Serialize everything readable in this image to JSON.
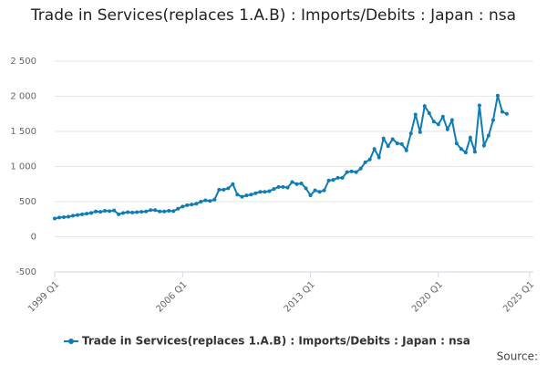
{
  "chart_data": {
    "type": "line",
    "title": "Trade in Services(replaces 1.A.B) : Imports/Debits : Japan : nsa",
    "source": "Source:",
    "categories": [
      "1999 Q1",
      null,
      null,
      null,
      null,
      null,
      null,
      null,
      null,
      null,
      null,
      null,
      null,
      null,
      null,
      null,
      null,
      null,
      null,
      null,
      null,
      null,
      null,
      null,
      null,
      null,
      null,
      null,
      "2006 Q1",
      null,
      null,
      null,
      null,
      null,
      null,
      null,
      null,
      null,
      null,
      null,
      null,
      null,
      null,
      null,
      null,
      null,
      null,
      null,
      null,
      null,
      null,
      null,
      null,
      null,
      null,
      null,
      "2013 Q1",
      null,
      null,
      null,
      null,
      null,
      null,
      null,
      null,
      null,
      null,
      null,
      null,
      null,
      null,
      null,
      null,
      null,
      null,
      null,
      null,
      null,
      null,
      null,
      null,
      null,
      null,
      null,
      "2020 Q1",
      null,
      null,
      null,
      null,
      null,
      null,
      null,
      null,
      null,
      null,
      null,
      null,
      null,
      null,
      null,
      null,
      null,
      null,
      null,
      "2025 Q1"
    ],
    "series": [
      {
        "name": "Trade in Services(replaces 1.A.B) : Imports/Debits : Japan : nsa",
        "color": "#0e7cb5",
        "values": [
          260,
          275,
          280,
          285,
          300,
          310,
          320,
          330,
          340,
          360,
          355,
          370,
          365,
          375,
          320,
          340,
          350,
          345,
          350,
          355,
          360,
          380,
          380,
          360,
          360,
          370,
          365,
          400,
          430,
          450,
          460,
          470,
          500,
          520,
          510,
          530,
          670,
          670,
          690,
          750,
          600,
          570,
          590,
          600,
          620,
          640,
          640,
          650,
          680,
          710,
          710,
          700,
          780,
          750,
          760,
          690,
          590,
          660,
          640,
          660,
          800,
          810,
          840,
          840,
          920,
          930,
          920,
          970,
          1060,
          1100,
          1250,
          1130,
          1400,
          1290,
          1390,
          1330,
          1320,
          1230,
          1470,
          1740,
          1490,
          1860,
          1760,
          1640,
          1600,
          1710,
          1530,
          1660,
          1330,
          1250,
          1200,
          1410,
          1210,
          1870,
          1300,
          1440,
          1660,
          2010,
          1780,
          1750,
          null,
          null,
          null,
          null,
          null
        ]
      }
    ],
    "ylim": [
      -500,
      2500
    ],
    "yticks": [
      -500,
      0,
      500,
      {
        "value": 1000,
        "label": "1 000"
      },
      {
        "value": 1500,
        "label": "1 500"
      },
      {
        "value": 2000,
        "label": "2 000"
      },
      {
        "value": 2500,
        "label": "2 500"
      }
    ],
    "grid": true
  }
}
